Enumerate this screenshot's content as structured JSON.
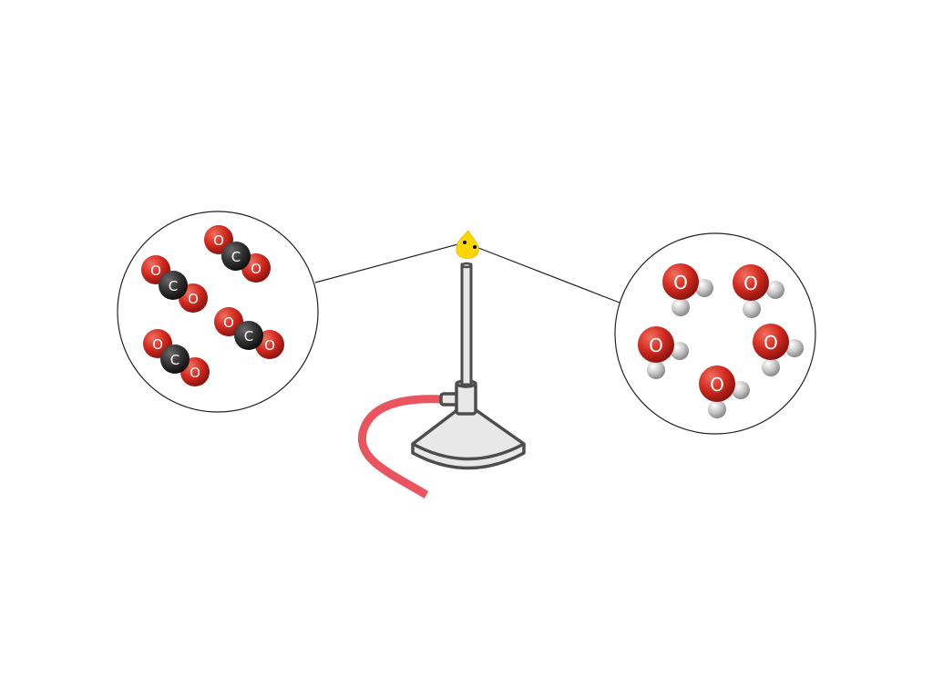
{
  "diagram": {
    "left_zoom": {
      "molecule": "carbon-dioxide",
      "count": 4,
      "carbon_label": "C",
      "oxygen_label": "O"
    },
    "right_zoom": {
      "molecule": "water",
      "count": 5,
      "oxygen_label": "O"
    },
    "burner": {
      "flame": "yellow",
      "hose": "red"
    },
    "colors": {
      "oxygen": "#d42a1f",
      "carbon": "#333333",
      "hydrogen": "#c8c8c8",
      "hose": "#e9545f",
      "flame": "#ffd700",
      "burner_fill": "#e8e8e8",
      "burner_stroke": "#4d4d4d"
    }
  }
}
